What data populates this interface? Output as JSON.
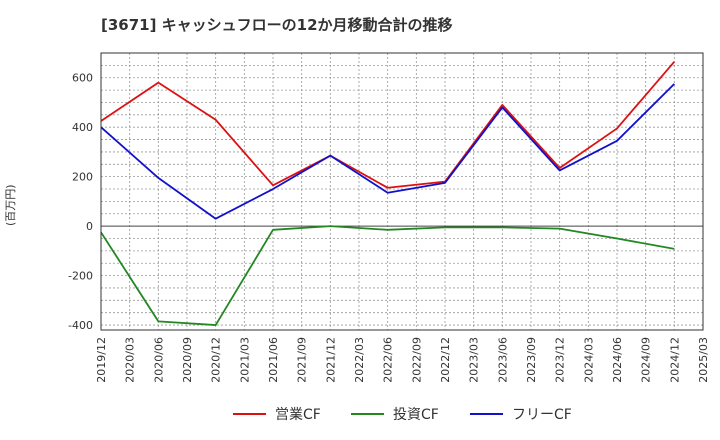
{
  "chart_data": {
    "type": "line",
    "title": "[3671]  キャッシュフローの12か月移動合計の推移",
    "ylabel": "(百万円)",
    "xlabel": "",
    "ylim": [
      -420,
      700
    ],
    "yticks": [
      -400,
      -200,
      0,
      200,
      400,
      600
    ],
    "ytick_labels": [
      "-400",
      "-200",
      "0",
      "200",
      "400",
      "600"
    ],
    "x_labels": [
      "2019/12",
      "2020/03",
      "2020/06",
      "2020/09",
      "2020/12",
      "2021/03",
      "2021/06",
      "2021/09",
      "2021/12",
      "2022/03",
      "2022/06",
      "2022/09",
      "2022/12",
      "2023/03",
      "2023/06",
      "2023/09",
      "2023/12",
      "2024/03",
      "2024/06",
      "2024/09",
      "2024/12",
      "2025/03"
    ],
    "grid": true,
    "legend_position": "bottom",
    "series": [
      {
        "name": "営業CF",
        "color": "#dd1111",
        "points": [
          {
            "x": "2019/12",
            "y": 425
          },
          {
            "x": "2020/06",
            "y": 580
          },
          {
            "x": "2020/12",
            "y": 430
          },
          {
            "x": "2021/06",
            "y": 165
          },
          {
            "x": "2021/12",
            "y": 285
          },
          {
            "x": "2022/06",
            "y": 155
          },
          {
            "x": "2022/12",
            "y": 180
          },
          {
            "x": "2023/06",
            "y": 490
          },
          {
            "x": "2023/12",
            "y": 235
          },
          {
            "x": "2024/06",
            "y": 395
          },
          {
            "x": "2024/12",
            "y": 665
          }
        ]
      },
      {
        "name": "投資CF",
        "color": "#228822",
        "points": [
          {
            "x": "2019/12",
            "y": -25
          },
          {
            "x": "2020/06",
            "y": -385
          },
          {
            "x": "2020/12",
            "y": -400
          },
          {
            "x": "2021/06",
            "y": -15
          },
          {
            "x": "2021/12",
            "y": 0
          },
          {
            "x": "2022/06",
            "y": -15
          },
          {
            "x": "2022/12",
            "y": -5
          },
          {
            "x": "2023/06",
            "y": -5
          },
          {
            "x": "2023/12",
            "y": -10
          },
          {
            "x": "2024/06",
            "y": -50
          },
          {
            "x": "2024/12",
            "y": -92
          }
        ]
      },
      {
        "name": "フリーCF",
        "color": "#1111cc",
        "points": [
          {
            "x": "2019/12",
            "y": 400
          },
          {
            "x": "2020/06",
            "y": 195
          },
          {
            "x": "2020/12",
            "y": 30
          },
          {
            "x": "2021/06",
            "y": 150
          },
          {
            "x": "2021/12",
            "y": 285
          },
          {
            "x": "2022/06",
            "y": 135
          },
          {
            "x": "2022/12",
            "y": 175
          },
          {
            "x": "2023/06",
            "y": 480
          },
          {
            "x": "2023/12",
            "y": 225
          },
          {
            "x": "2024/06",
            "y": 345
          },
          {
            "x": "2024/12",
            "y": 575
          }
        ]
      }
    ]
  }
}
